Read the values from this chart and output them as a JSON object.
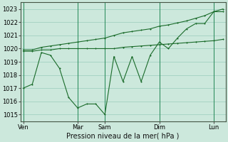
{
  "xlabel": "Pression niveau de la mer( hPa )",
  "bg_color": "#cce8dc",
  "grid_color": "#99ccbb",
  "line_color": "#1a6b2a",
  "vline_color": "#228855",
  "ylim": [
    1014.5,
    1023.5
  ],
  "yticks": [
    1015,
    1016,
    1017,
    1018,
    1019,
    1020,
    1021,
    1022,
    1023
  ],
  "xtick_labels": [
    "Ven",
    "Mar",
    "Sam",
    "Dim",
    "Lun"
  ],
  "xtick_positions": [
    0,
    6,
    9,
    15,
    21
  ],
  "n_points": 23,
  "line1_volatile": [
    1017.0,
    1017.3,
    1019.7,
    1019.5,
    1018.5,
    1016.3,
    1015.5,
    1015.8,
    1015.8,
    1015.0,
    1019.4,
    1017.5,
    1019.4,
    1017.5,
    1019.5,
    1020.5,
    1020.0,
    1020.8,
    1021.5,
    1021.9,
    1021.9,
    1022.8,
    1023.0
  ],
  "line2_flat": [
    1019.8,
    1019.8,
    1019.9,
    1019.9,
    1020.0,
    1020.0,
    1020.0,
    1020.0,
    1020.0,
    1020.0,
    1020.0,
    1020.1,
    1020.15,
    1020.2,
    1020.25,
    1020.3,
    1020.35,
    1020.4,
    1020.45,
    1020.5,
    1020.55,
    1020.6,
    1020.7
  ],
  "line3_upper": [
    1019.9,
    1019.9,
    1020.1,
    1020.2,
    1020.3,
    1020.4,
    1020.5,
    1020.6,
    1020.7,
    1020.8,
    1021.0,
    1021.2,
    1021.3,
    1021.4,
    1021.5,
    1021.7,
    1021.8,
    1021.95,
    1022.1,
    1022.3,
    1022.5,
    1022.8,
    1022.8
  ],
  "xlabel_fontsize": 7,
  "ytick_fontsize": 6,
  "xtick_fontsize": 6
}
